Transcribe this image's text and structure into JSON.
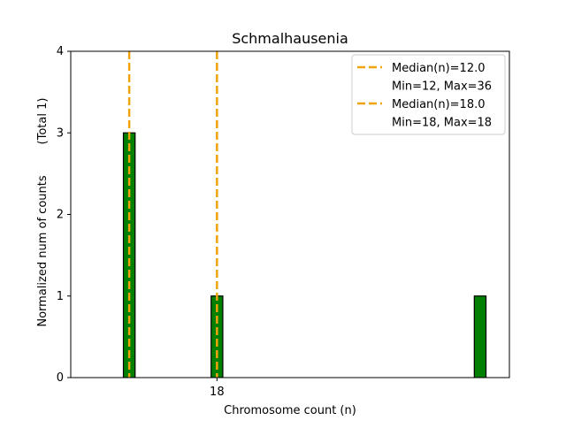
{
  "chart_data": {
    "type": "bar",
    "title": "Schmalhausenia",
    "xlabel": "Chromosome count (n)",
    "ylabel": "Normalized num of counts",
    "ylabel_extra": "(Total 1)",
    "xlim": [
      8,
      38
    ],
    "ylim": [
      0,
      4
    ],
    "xticks": [
      18
    ],
    "yticks": [
      0,
      1,
      2,
      3,
      4
    ],
    "bar_width": 0.8,
    "bars": [
      {
        "x": 12,
        "value": 3
      },
      {
        "x": 18,
        "value": 1
      },
      {
        "x": 36,
        "value": 1
      }
    ],
    "medians": [
      {
        "x": 12.0,
        "label": "Median(n)=12.0",
        "range_label": "Min=12, Max=36"
      },
      {
        "x": 18.0,
        "label": "Median(n)=18.0",
        "range_label": "Min=18, Max=18"
      }
    ],
    "colors": {
      "bar_fill": "#008000",
      "bar_edge": "#000000",
      "median_line": "#f0a30a"
    },
    "legend_position": "top-right",
    "grid": false
  }
}
